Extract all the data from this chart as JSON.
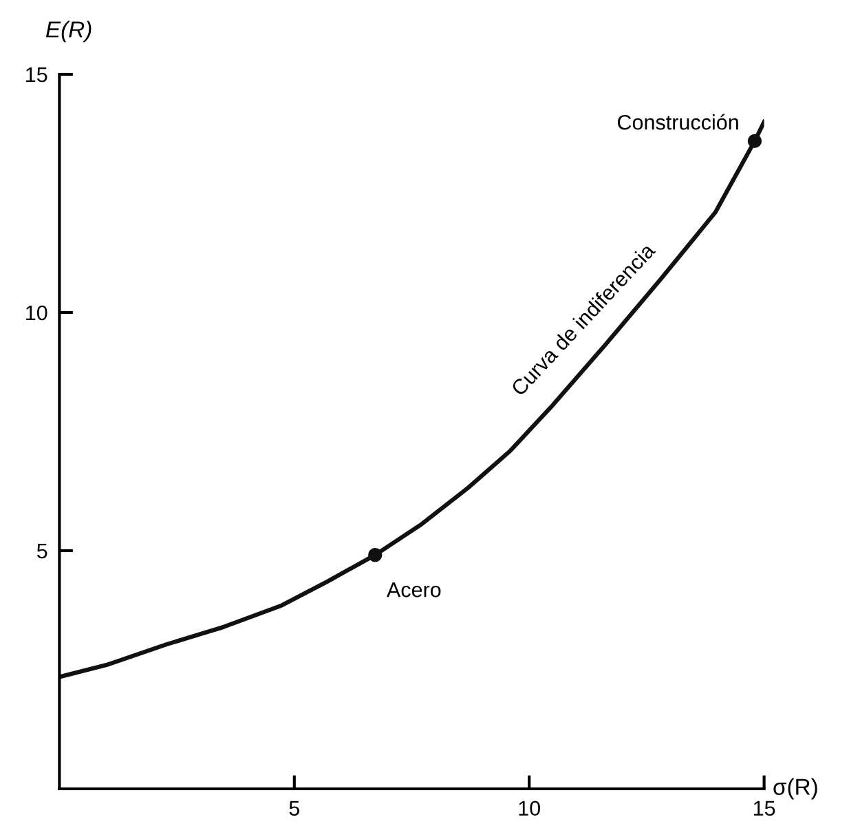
{
  "chart_data": {
    "type": "line",
    "xlabel": "σ(R)",
    "ylabel": "E(R)",
    "xlim": [
      0,
      15
    ],
    "ylim": [
      0,
      15
    ],
    "xticks": [
      5,
      10,
      15
    ],
    "yticks": [
      5,
      10,
      15
    ],
    "grid": false,
    "legend": false,
    "series": [
      {
        "color": "#111111",
        "marker": "none",
        "line_style": "solid",
        "x": [
          0,
          1,
          2.27,
          3.5,
          4.73,
          5.7,
          6.72,
          7.7,
          8.7,
          9.6,
          10.45,
          11.6,
          12.8,
          13.96,
          14.8,
          15
        ],
        "values": [
          2.35,
          2.6,
          3.03,
          3.4,
          3.85,
          4.35,
          4.91,
          5.55,
          6.32,
          7.1,
          8.0,
          9.3,
          10.7,
          12.1,
          13.6,
          14.0
        ]
      },
      {
        "type": "scatter",
        "color": "#111111",
        "marker": "circle",
        "x": [
          6.72,
          14.8
        ],
        "values": [
          4.91,
          13.6
        ]
      }
    ],
    "annotations": [
      {
        "text": "Acero",
        "x": 6.72,
        "y": 4.91
      },
      {
        "text": "Construcción",
        "x": 14.8,
        "y": 13.6
      },
      {
        "text": "Curva de indiferencia",
        "x": 10.45,
        "y": 8.0
      }
    ]
  }
}
